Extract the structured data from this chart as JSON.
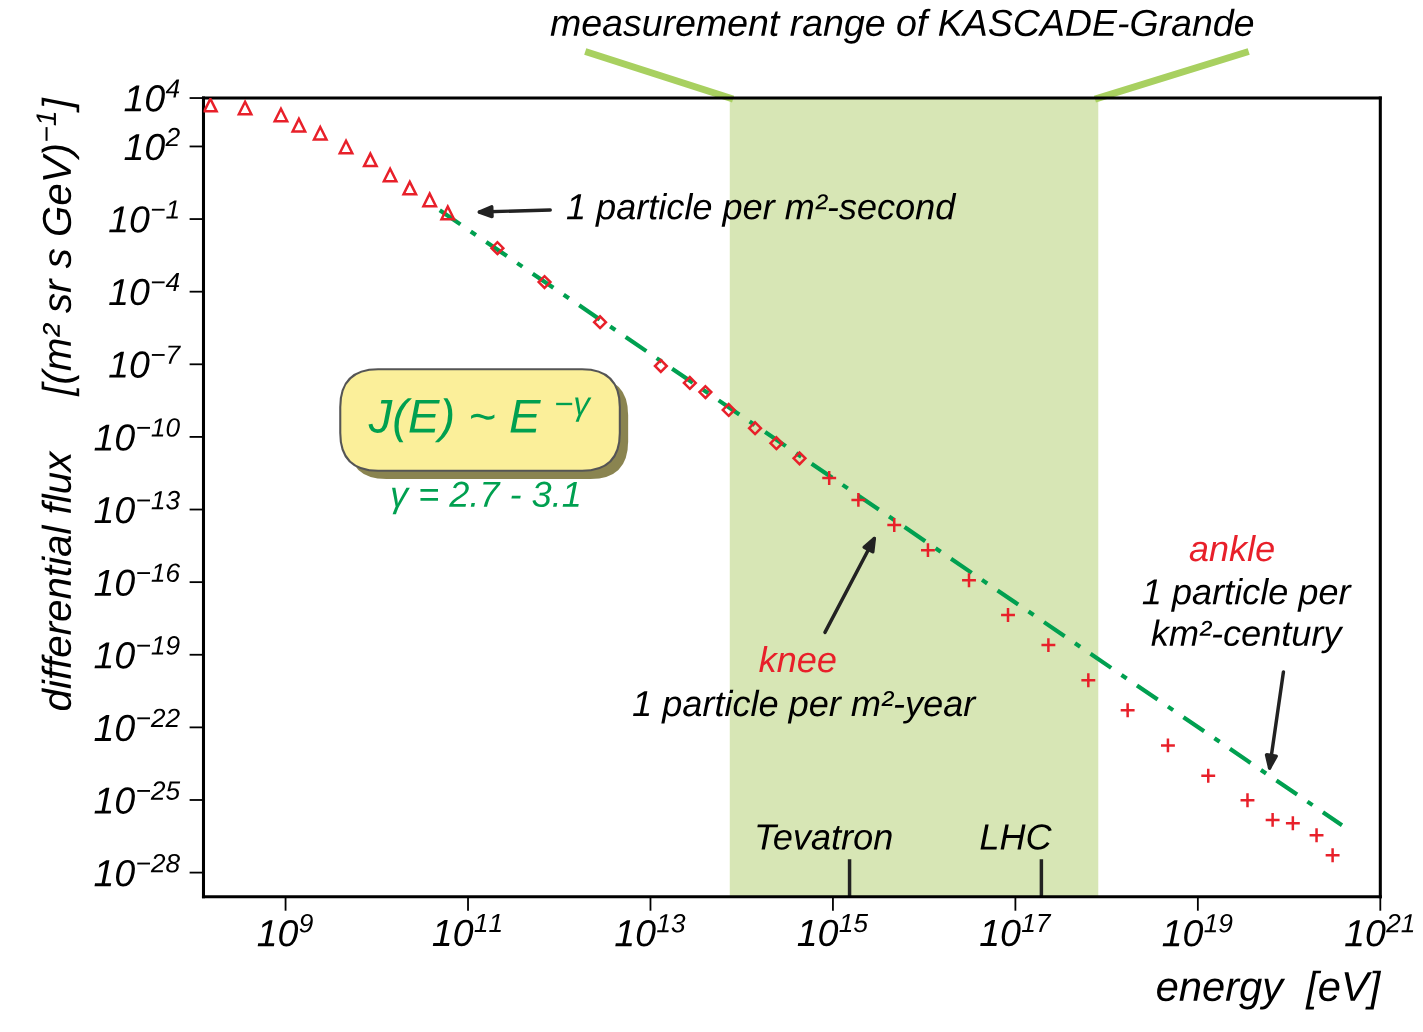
{
  "chart_data": {
    "type": "scatter",
    "xlabel": "energy  [eV]",
    "ylabel": "differential flux     [(m² sr s GeV)$^{−1}$]",
    "log": "xy",
    "xlim": [
      126000000.0,
      1e+21
    ],
    "ylim": [
      1e-29,
      10000.0
    ],
    "xticks": [
      {
        "value": 1000000000.0,
        "label": "10$^{9}$"
      },
      {
        "value": 100000000000.0,
        "label": "10$^{11}$"
      },
      {
        "value": 10000000000000.0,
        "label": "10$^{13}$"
      },
      {
        "value": 1000000000000000.0,
        "label": "10$^{15}$"
      },
      {
        "value": 1e+17,
        "label": "10$^{17}$"
      },
      {
        "value": 1e+19,
        "label": "10$^{19}$"
      },
      {
        "value": 1e+21,
        "label": "10$^{21}$"
      }
    ],
    "yticks": [
      {
        "value": 10000.0,
        "label": "10$^{4}$"
      },
      {
        "value": 100.0,
        "label": "10$^{2}$"
      },
      {
        "value": 0.1,
        "label": "10$^{−1}$"
      },
      {
        "value": 0.0001,
        "label": "10$^{−4}$"
      },
      {
        "value": 1e-07,
        "label": "10$^{−7}$"
      },
      {
        "value": 1e-10,
        "label": "10$^{−10}$"
      },
      {
        "value": 1e-13,
        "label": "10$^{−13}$"
      },
      {
        "value": 1e-16,
        "label": "10$^{−16}$"
      },
      {
        "value": 1e-19,
        "label": "10$^{−19}$"
      },
      {
        "value": 1e-22,
        "label": "10$^{−22}$"
      },
      {
        "value": 1e-25,
        "label": "10$^{−25}$"
      },
      {
        "value": 1e-28,
        "label": "10$^{−28}$"
      }
    ],
    "grid": false,
    "series": [
      {
        "color": "#e8202a",
        "marker": "triangle",
        "x": [
          150000000.0,
          360000000.0,
          890000000.0,
          1400000000.0,
          2400000000.0,
          4600000000.0,
          8500000000.0,
          14000000000.0,
          23000000000.0,
          38000000000.0,
          60000000000.0
        ],
        "values": [
          5100.0,
          3900.0,
          2000.0,
          760.0,
          350.0,
          95,
          28,
          6.6,
          1.9,
          0.62,
          0.18
        ]
      },
      {
        "color": "#e8202a",
        "marker": "diamond",
        "x": [
          210000000000.0,
          690000000000.0,
          2800000000000.0,
          13000000000000.0,
          27000000000000.0,
          40000000000000.0,
          72000000000000.0,
          140000000000000.0,
          240000000000000.0,
          430000000000000.0
        ],
        "values": [
          0.0063,
          0.00025,
          5.5e-06,
          8.5e-08,
          1.7e-08,
          7.1e-09,
          1.3e-09,
          2.3e-10,
          5.5e-11,
          1.3e-11
        ]
      },
      {
        "color": "#e8202a",
        "marker": "cross",
        "x": [
          910000000000000.0,
          1900000000000000.0,
          4700000000000000.0,
          1.1e+16,
          3.1e+16,
          8.3e+16,
          2.3e+17,
          6.3e+17,
          1.7e+18,
          4.7e+18,
          1.3e+19,
          3.5e+19,
          6.6e+19,
          1.1e+20,
          2e+20,
          3e+20
        ],
        "values": [
          2e-12,
          2.5e-13,
          2.3e-14,
          2.1e-15,
          1.2e-16,
          4.4e-18,
          2.5e-19,
          8.9e-21,
          5.1e-22,
          1.8e-23,
          1e-24,
          9.8e-26,
          1.5e-26,
          1.1e-26,
          3.5e-27,
          5.2e-28
        ]
      },
      {
        "type": "line",
        "color": "#00a050",
        "line_style": "dashdot",
        "marker": "none",
        "x": [
          49000000000.0,
          3.8e+20
        ],
        "values": [
          0.23,
          9.1e-27
        ]
      }
    ],
    "bands": [
      {
        "axis": "x",
        "from": 74000000000000.0,
        "to": 8.1e+17,
        "label": "measurement range of KASCADE-Grande",
        "color": "#d7e6b5"
      }
    ],
    "annotations": [
      "1 particle per m²-second",
      "knee",
      "1 particle per m²-year",
      "ankle",
      "1 particle per\nkm²-century",
      "J(E) ~ E $^{−γ}$",
      "γ = 2.7 - 3.1",
      "Tevatron",
      "LHC"
    ]
  }
}
